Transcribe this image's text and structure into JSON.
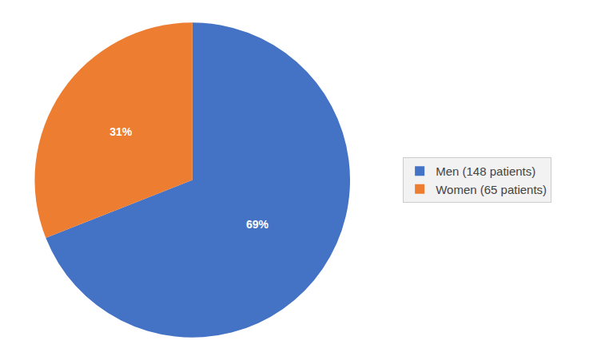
{
  "chart_data": {
    "type": "pie",
    "categories": [
      "Men (148 patients)",
      "Women (65 patients)"
    ],
    "values": [
      69,
      31
    ],
    "value_labels": [
      "69%",
      "31%"
    ],
    "colors": [
      "#4472C4",
      "#ED7D31"
    ],
    "data_labels": true,
    "legend": "right"
  }
}
